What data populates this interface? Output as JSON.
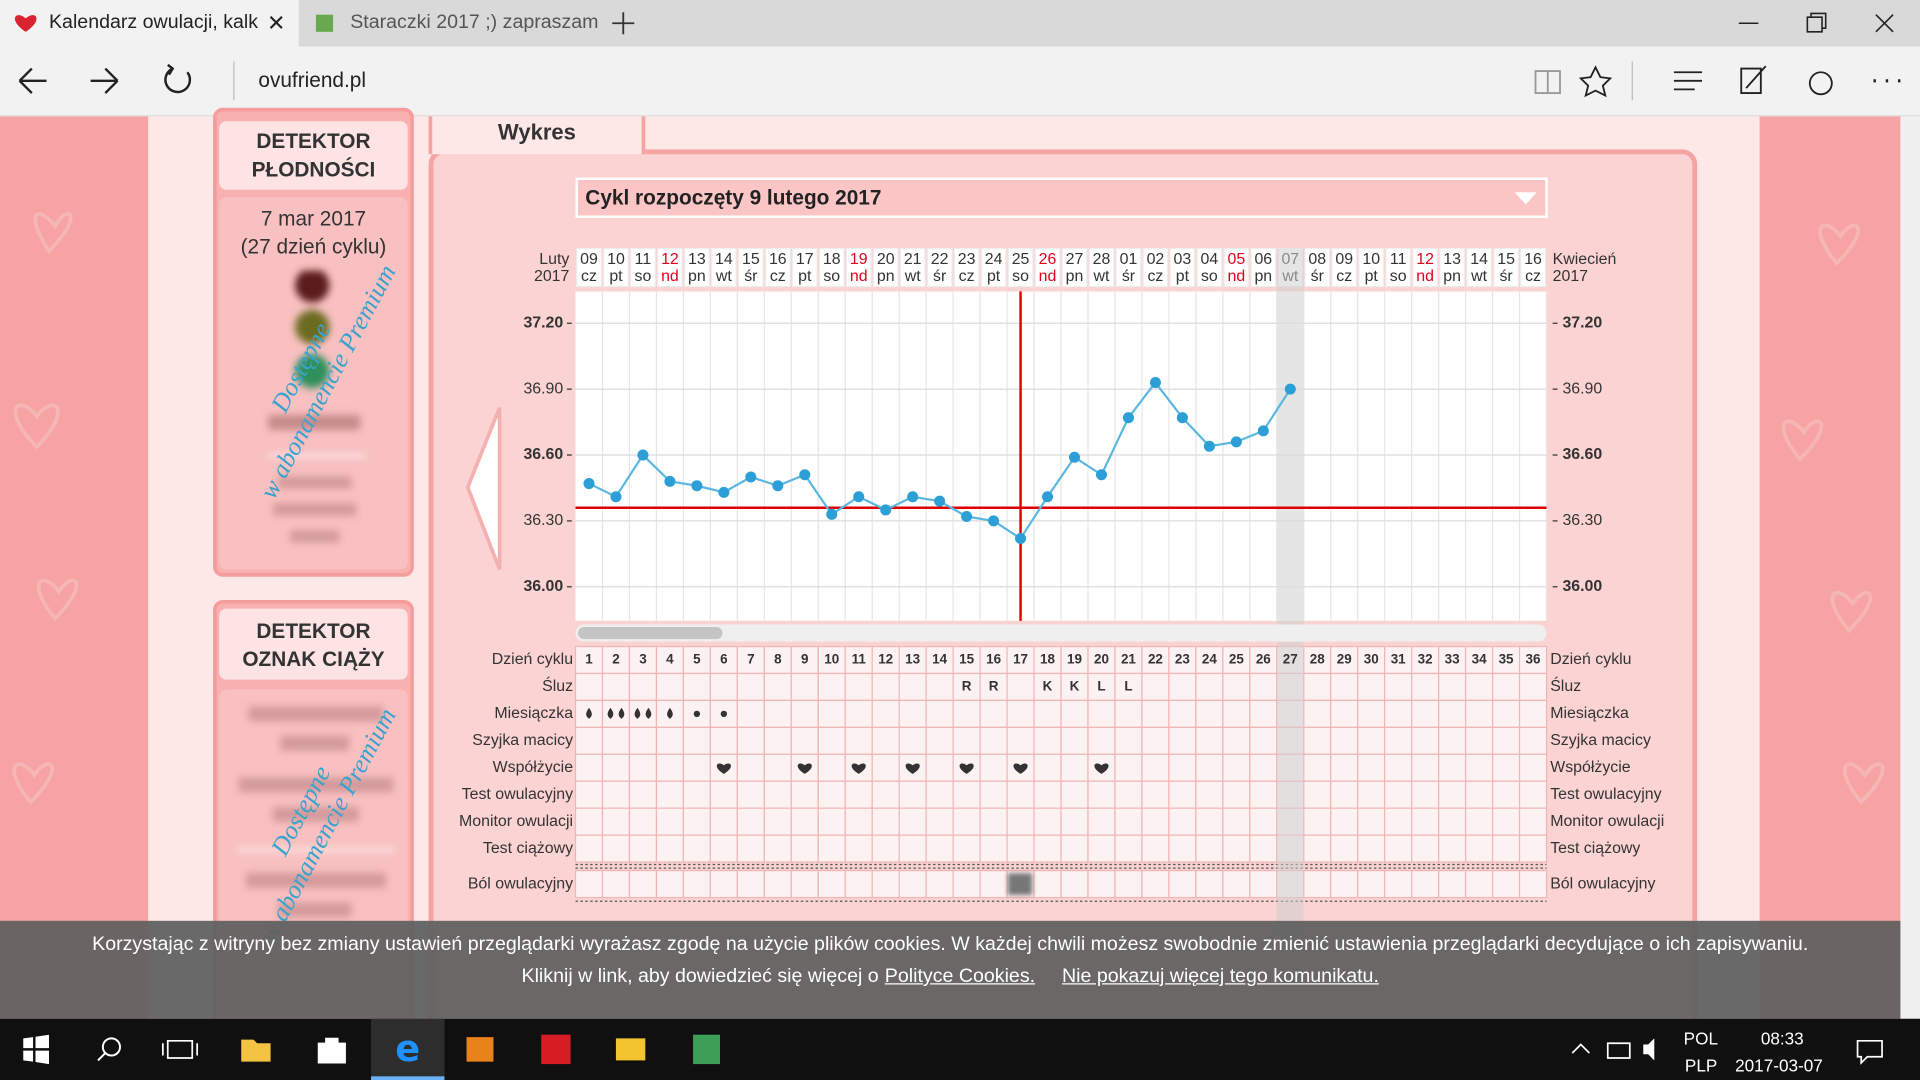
{
  "browser": {
    "tabs": [
      "Kalendarz owulacji, kalk",
      "Staraczki 2017 ;) zapraszam"
    ],
    "address": "ovufriend.pl"
  },
  "sidebar": {
    "fertility": {
      "title": [
        "DETEKTOR",
        "PŁODNOŚCI"
      ],
      "date": "7 mar 2017",
      "cycle_day": "(27 dzień cyklu)",
      "premium": [
        "Dostępne",
        "w abonamencie Premium"
      ]
    },
    "pregnancy": {
      "title": [
        "DETEKTOR",
        "OZNAK CIĄŻY"
      ],
      "premium": [
        "Dostępne",
        "w abonamencie Premium"
      ]
    }
  },
  "panel": {
    "tab": "Wykres",
    "cycle_select": "Cykl rozpoczęty 9 lutego 2017"
  },
  "chart_data": {
    "type": "line",
    "x_label_start": [
      "Luty",
      "2017"
    ],
    "x_label_end": [
      "Kwiecień",
      "2017"
    ],
    "x": [
      1,
      2,
      3,
      4,
      5,
      6,
      7,
      8,
      9,
      10,
      11,
      12,
      13,
      14,
      15,
      16,
      17,
      18,
      19,
      20,
      21,
      22,
      23,
      24,
      25,
      26,
      27,
      28,
      29,
      30,
      31,
      32,
      33,
      34,
      35,
      36
    ],
    "dates": [
      "09",
      "10",
      "11",
      "12",
      "13",
      "14",
      "15",
      "16",
      "17",
      "18",
      "19",
      "20",
      "21",
      "22",
      "23",
      "24",
      "25",
      "26",
      "27",
      "28",
      "01",
      "02",
      "03",
      "04",
      "05",
      "06",
      "07",
      "08",
      "09",
      "10",
      "11",
      "12",
      "13",
      "14",
      "15",
      "16"
    ],
    "weekdays": [
      "cz",
      "pt",
      "so",
      "nd",
      "pn",
      "wt",
      "śr",
      "cz",
      "pt",
      "so",
      "nd",
      "pn",
      "wt",
      "śr",
      "cz",
      "pt",
      "so",
      "nd",
      "pn",
      "wt",
      "śr",
      "cz",
      "pt",
      "so",
      "nd",
      "pn",
      "wt",
      "śr",
      "cz",
      "pt",
      "so",
      "nd",
      "pn",
      "wt",
      "śr",
      "cz"
    ],
    "red_columns": [
      4,
      11,
      18,
      25,
      32
    ],
    "red_color": "#e0001b",
    "values": [
      36.47,
      36.41,
      36.6,
      36.48,
      36.46,
      36.43,
      36.5,
      36.46,
      36.51,
      36.33,
      36.41,
      36.35,
      36.41,
      36.39,
      36.32,
      36.3,
      36.22,
      36.41,
      36.59,
      36.51,
      36.77,
      36.93,
      36.77,
      36.64,
      36.66,
      36.71,
      36.9,
      null,
      null,
      null,
      null,
      null,
      null,
      null,
      null,
      null
    ],
    "color": "#2b9fd6",
    "xlim": [
      0.5,
      36.5
    ],
    "ylim": [
      35.845,
      37.345
    ],
    "yticks": [
      {
        "value": 36.0,
        "label": "36.00"
      },
      {
        "value": 36.3,
        "label": "36.30"
      },
      {
        "value": 36.6,
        "label": "36.60"
      },
      {
        "value": 36.9,
        "label": "36.90"
      },
      {
        "value": 37.2,
        "label": "37.20"
      }
    ],
    "cover_line": 36.36,
    "ovulation_day": 17,
    "reference_color": "#e00000",
    "highlight_day": 27,
    "grid": true
  },
  "cycle_table": {
    "rows": [
      "Dzień cyklu",
      "Śluz",
      "Miesiączka",
      "Szyjka macicy",
      "Współżycie",
      "Test owulacyjny",
      "Monitor owulacji",
      "Test ciążowy",
      "Ból owulacyjny"
    ],
    "mucus": [
      {
        "day": 15,
        "label": "R"
      },
      {
        "day": 16,
        "label": "R"
      },
      {
        "day": 18,
        "label": "K"
      },
      {
        "day": 19,
        "label": "K"
      },
      {
        "day": 20,
        "label": "L"
      },
      {
        "day": 21,
        "label": "L"
      }
    ],
    "menstruation": [
      {
        "day": 1,
        "drops": 1
      },
      {
        "day": 2,
        "drops": 2
      },
      {
        "day": 3,
        "drops": 2
      },
      {
        "day": 4,
        "drops": 1
      },
      {
        "day": 5,
        "drops": 0
      },
      {
        "day": 6,
        "drops": 0
      }
    ],
    "intercourse": [
      6,
      9,
      11,
      13,
      15,
      17,
      20
    ]
  },
  "cookie_banner": {
    "text": "Korzystając z witryny bez zmiany ustawień przeglądarki wyrażasz zgodę na użycie plików cookies. W każdej chwili możesz swobodnie zmienić ustawienia przeglądarki decydujące o ich zapisywaniu.",
    "more": "Kliknij w link, aby dowiedzieć się więcej o",
    "link": "Polityce Cookies.",
    "dismiss": "Nie pokazuj więcej tego komunikatu."
  },
  "taskbar": {
    "language": "POL",
    "layout": "PLP",
    "time": "08:33",
    "date": "2017-03-07"
  }
}
